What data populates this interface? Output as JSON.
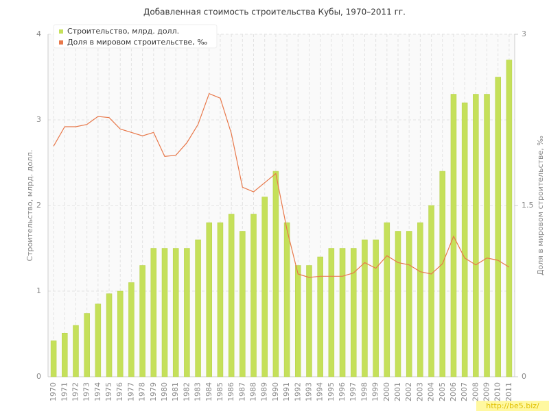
{
  "chart_data": {
    "type": "bar_line",
    "title": "Добавленная стоимость строительства Кубы, 1970–2011 гг.",
    "y_label": "Строительство, млрд. долл.",
    "y2_label": "Доля в мировом строительстве, ‰",
    "watermark": "http://be5.biz/",
    "categories": [
      "1970",
      "1971",
      "1972",
      "1973",
      "1974",
      "1975",
      "1976",
      "1977",
      "1978",
      "1979",
      "1980",
      "1981",
      "1982",
      "1983",
      "1984",
      "1985",
      "1986",
      "1987",
      "1988",
      "1989",
      "1990",
      "1991",
      "1992",
      "1993",
      "1994",
      "1995",
      "1996",
      "1997",
      "1998",
      "1999",
      "2000",
      "2001",
      "2002",
      "2003",
      "2004",
      "2005",
      "2006",
      "2007",
      "2008",
      "2009",
      "2010",
      "2011"
    ],
    "series": [
      {
        "name": "Строительство, млрд. долл.",
        "color": "#c5e05a",
        "type": "bar",
        "values": [
          0.42,
          0.51,
          0.6,
          0.74,
          0.85,
          0.97,
          1.0,
          1.1,
          1.3,
          1.5,
          1.5,
          1.5,
          1.5,
          1.6,
          1.8,
          1.8,
          1.9,
          1.7,
          1.9,
          2.1,
          2.4,
          1.8,
          1.3,
          1.3,
          1.4,
          1.5,
          1.5,
          1.5,
          1.6,
          1.6,
          1.8,
          1.7,
          1.7,
          1.8,
          2.0,
          2.4,
          3.3,
          3.2,
          3.3,
          3.3,
          3.5,
          3.7
        ]
      },
      {
        "name": "Доля в мировом строительстве, ‰",
        "color": "#e8784a",
        "type": "line",
        "axis": "y2",
        "values": [
          2.02,
          2.19,
          2.19,
          2.21,
          2.28,
          2.27,
          2.17,
          2.14,
          2.11,
          2.14,
          1.93,
          1.94,
          2.05,
          2.21,
          2.48,
          2.44,
          2.13,
          1.66,
          1.62,
          1.7,
          1.78,
          1.29,
          0.9,
          0.87,
          0.88,
          0.88,
          0.88,
          0.91,
          1.0,
          0.95,
          1.06,
          1.0,
          0.98,
          0.92,
          0.9,
          0.99,
          1.23,
          1.04,
          0.98,
          1.04,
          1.02,
          0.96
        ]
      }
    ],
    "ylim": [
      0,
      4
    ],
    "yticks": [
      0,
      1,
      2,
      3,
      4
    ],
    "y2lim": [
      0,
      3
    ],
    "y2ticks": [
      0,
      1.5,
      3
    ],
    "grid": true,
    "legend": "top-left"
  }
}
